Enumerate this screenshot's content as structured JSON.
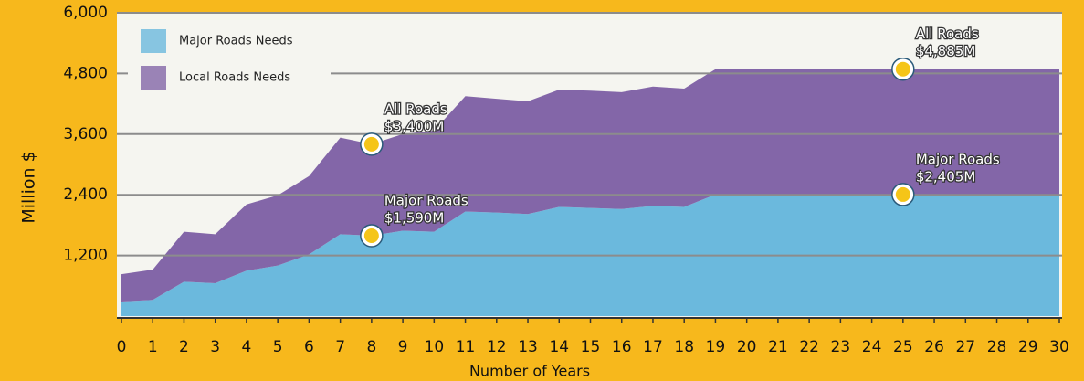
{
  "chart_data": {
    "type": "stacked_area",
    "x": [
      0,
      1,
      2,
      3,
      4,
      5,
      6,
      7,
      8,
      9,
      10,
      11,
      12,
      13,
      14,
      15,
      16,
      17,
      18,
      19,
      20,
      21,
      22,
      23,
      24,
      25,
      26,
      27,
      28,
      29,
      30
    ],
    "xlim": [
      0,
      30
    ],
    "xticks": [
      0,
      1,
      2,
      3,
      4,
      5,
      6,
      7,
      8,
      9,
      10,
      11,
      12,
      13,
      14,
      15,
      16,
      17,
      18,
      19,
      20,
      21,
      22,
      23,
      24,
      25,
      26,
      27,
      28,
      29,
      30
    ],
    "ylim": [
      0,
      6000
    ],
    "yticks": [
      {
        "value": 1200,
        "label": "1,200"
      },
      {
        "value": 2400,
        "label": "2,400"
      },
      {
        "value": 3600,
        "label": "3,600"
      },
      {
        "value": 4800,
        "label": "4,800"
      },
      {
        "value": 6000,
        "label": "6,000"
      }
    ],
    "grid": true,
    "xlabel": "Number of Years",
    "ylabel": "Million $",
    "legend": "top-left",
    "series": [
      {
        "name": "Major Roads Needs",
        "color": "#6bb9dd",
        "values": [
          290,
          320,
          680,
          650,
          900,
          1000,
          1220,
          1620,
          1590,
          1690,
          1670,
          2070,
          2050,
          2020,
          2160,
          2140,
          2120,
          2180,
          2160,
          2405,
          2405,
          2405,
          2405,
          2405,
          2405,
          2405,
          2405,
          2405,
          2405,
          2405,
          2405
        ]
      },
      {
        "name": "Local Roads Needs",
        "color": "#8366a8",
        "values": [
          540,
          600,
          990,
          970,
          1310,
          1390,
          1550,
          1910,
          1810,
          1910,
          2000,
          2280,
          2250,
          2230,
          2320,
          2320,
          2310,
          2360,
          2340,
          2480,
          2480,
          2480,
          2480,
          2480,
          2480,
          2480,
          2480,
          2480,
          2480,
          2480,
          2480
        ]
      }
    ],
    "annotations": [
      {
        "lines": [
          "All Roads",
          "$3,400M"
        ],
        "x": 8,
        "y": 3400
      },
      {
        "lines": [
          "Major Roads",
          "$1,590M"
        ],
        "x": 8,
        "y": 1590
      },
      {
        "lines": [
          "All Roads",
          "$4,885M"
        ],
        "x": 25,
        "y": 4885
      },
      {
        "lines": [
          "Major Roads",
          "$2,405M"
        ],
        "x": 25,
        "y": 2405
      }
    ]
  }
}
